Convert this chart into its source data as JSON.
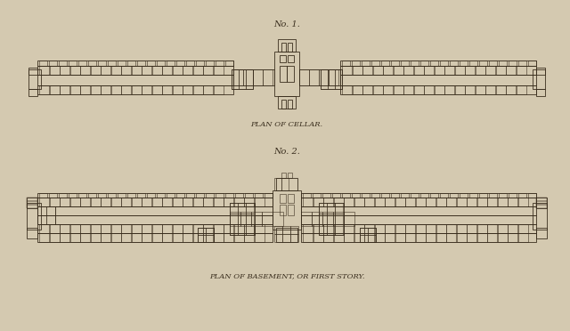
{
  "bg_color": "#d4c9b0",
  "line_color": "#3a2e1e",
  "title1": "No. 1.",
  "title2": "No. 2.",
  "caption1": "PLAN OF CELLAR.",
  "caption2": "PLAN OF BASEMENT, OR FIRST STORY.",
  "title_fontsize": 7,
  "caption_fontsize": 6,
  "fig_width": 6.4,
  "fig_height": 3.72
}
